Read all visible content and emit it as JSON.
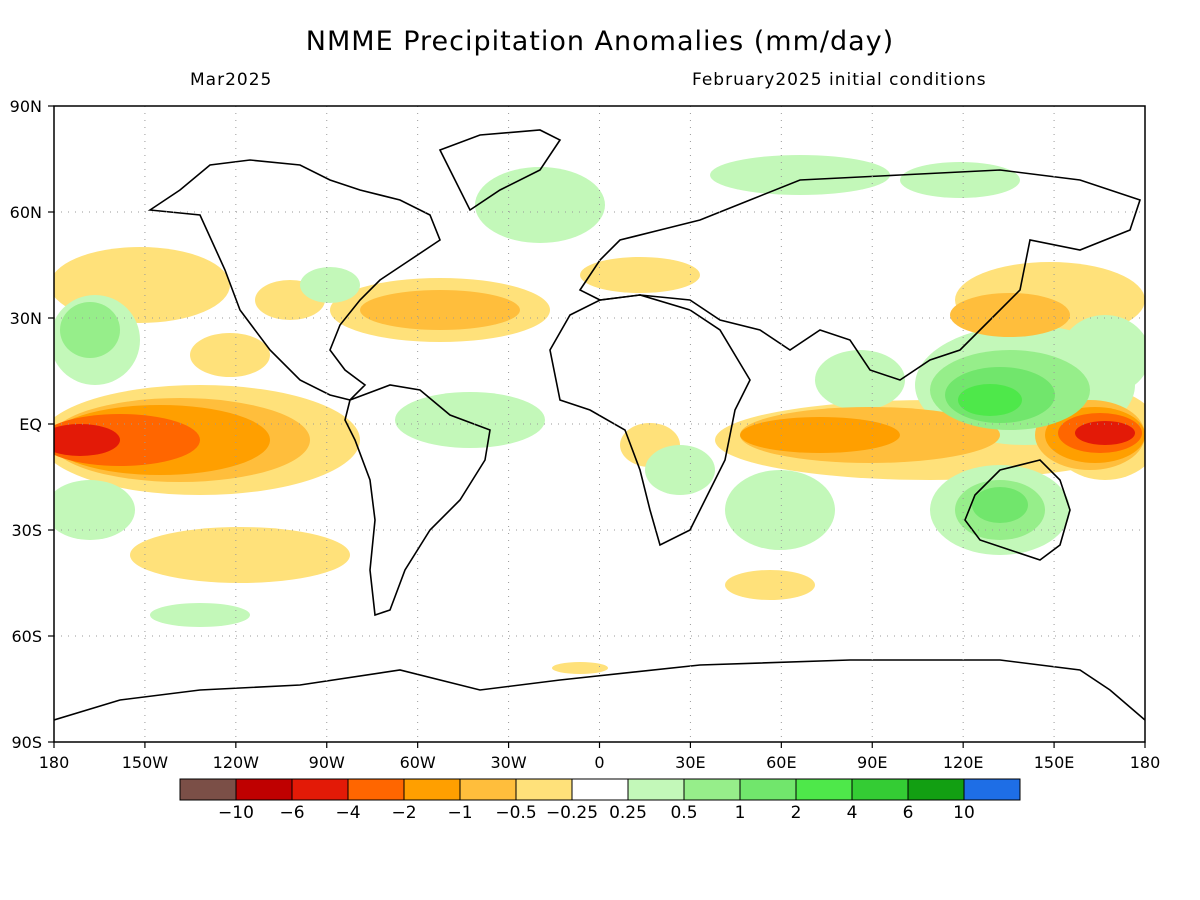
{
  "title": "NMME Precipitation Anomalies (mm/day)",
  "subtitle_left": "Mar2025",
  "subtitle_right": "February2025 initial conditions",
  "lat_labels": [
    "90N",
    "60N",
    "30N",
    "EQ",
    "30S",
    "60S",
    "90S"
  ],
  "lon_labels": [
    "180",
    "150W",
    "120W",
    "90W",
    "60W",
    "30W",
    "0",
    "30E",
    "60E",
    "90E",
    "120E",
    "150E",
    "180"
  ],
  "colorbar": {
    "colors": [
      "#7b4f47",
      "#bf0000",
      "#e31a07",
      "#ff6600",
      "#ff9f00",
      "#ffbe3c",
      "#ffe17a",
      "#ffffff",
      "#c3f8b9",
      "#96ee8a",
      "#71e66c",
      "#4ee84a",
      "#34cc34",
      "#129f12",
      "#1e6ee6"
    ],
    "labels": [
      "-10",
      "-6",
      "-4",
      "-2",
      "-1",
      "-0.5",
      "-0.25",
      "0.25",
      "0.5",
      "1",
      "2",
      "4",
      "6",
      "10"
    ]
  },
  "map_colors": {
    "dry_1": "#ffe17a",
    "dry_2": "#ffbe3c",
    "dry_3": "#ff9f00",
    "dry_4": "#ff6600",
    "dry_5": "#e31a07",
    "dry_6": "#bf0000",
    "wet_1": "#c3f8b9",
    "wet_2": "#96ee8a",
    "wet_3": "#71e66c",
    "wet_4": "#4ee84a",
    "wet_5": "#34cc34"
  }
}
